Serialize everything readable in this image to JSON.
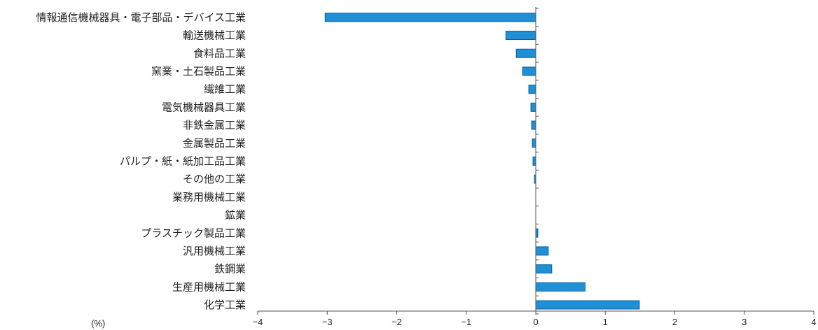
{
  "chart_data": {
    "type": "bar",
    "orientation": "horizontal",
    "unit_label": "(%)",
    "categories": [
      "情報通信機械器具・電子部品・デバイス工業",
      "輸送機械工業",
      "食料品工業",
      "窯業・土石製品工業",
      "繊維工業",
      "電気機械器具工業",
      "非鉄金属工業",
      "金属製品工業",
      "パルプ・紙・紙加工品工業",
      "その他の工業",
      "業務用機械工業",
      "鉱業",
      "プラスチック製品工業",
      "汎用機械工業",
      "鉄鋼業",
      "生産用機械工業",
      "化学工業"
    ],
    "values": [
      -3.03,
      -0.43,
      -0.28,
      -0.19,
      -0.1,
      -0.07,
      -0.06,
      -0.05,
      -0.04,
      -0.02,
      0.0,
      0.0,
      0.03,
      0.18,
      0.23,
      0.71,
      1.49
    ],
    "xlim": [
      -4,
      4
    ],
    "xticks": [
      -4,
      -3,
      -2,
      -1,
      0,
      1,
      2,
      3,
      4
    ],
    "xtick_labels": [
      "−4",
      "−3",
      "−2",
      "−1",
      "0",
      "1",
      "2",
      "3",
      "4"
    ],
    "bar_color": "#1f8fd6",
    "bar_edge_color": "#0a5f9e",
    "grid": false,
    "legend": "none"
  }
}
